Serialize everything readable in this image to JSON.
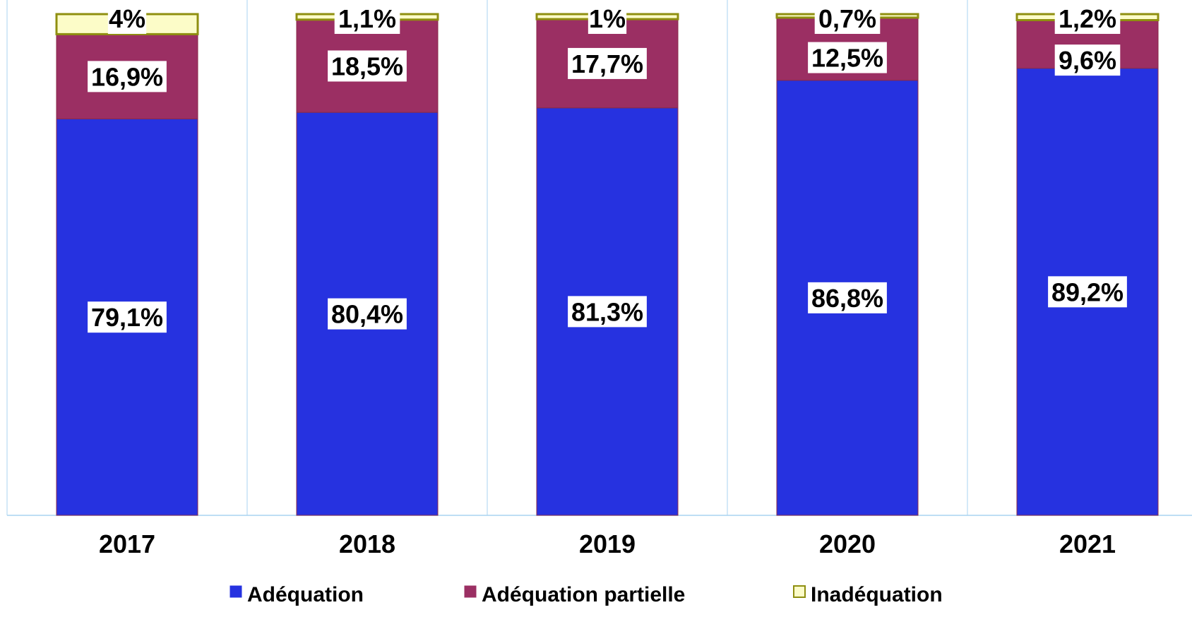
{
  "chart_data": {
    "type": "bar",
    "stacked": true,
    "percent_stacked": true,
    "categories": [
      "2017",
      "2018",
      "2019",
      "2020",
      "2021"
    ],
    "series": [
      {
        "name": "Adéquation",
        "color": "#2632e0",
        "values": [
          79.1,
          80.4,
          81.3,
          86.8,
          89.2
        ],
        "labels": [
          "79,1%",
          "80,4%",
          "81,3%",
          "86,8%",
          "89,2%"
        ]
      },
      {
        "name": "Adéquation partielle",
        "color": "#9b2f63",
        "values": [
          16.9,
          18.5,
          17.7,
          12.5,
          9.6
        ],
        "labels": [
          "16,9%",
          "18,5%",
          "17,7%",
          "12,5%",
          "9,6%"
        ]
      },
      {
        "name": "Inadéquation",
        "color": "#fcfcc8",
        "border_color": "#8f8f10",
        "values": [
          4,
          1.1,
          1,
          0.7,
          1.2
        ],
        "labels": [
          "4%",
          "1,1%",
          "1%",
          "0,7%",
          "1,2%"
        ]
      }
    ],
    "ylim": [
      0,
      100
    ],
    "y_axis_visible": false,
    "grid": "vertical category separators",
    "gridline_color": "#a9d3f0",
    "legend_position": "bottom"
  }
}
